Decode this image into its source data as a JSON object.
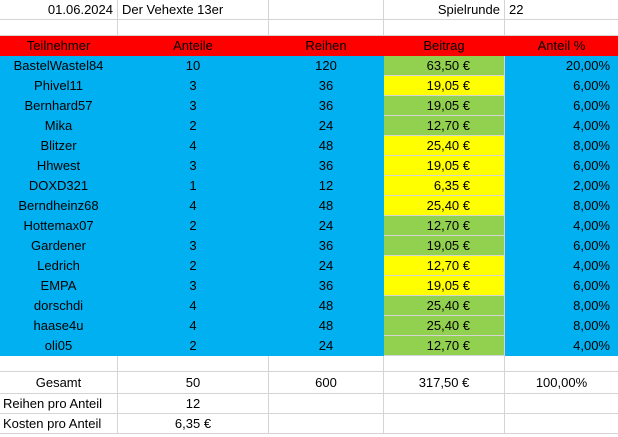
{
  "top": {
    "date": "01.06.2024",
    "title": "Der Vehexte 13er",
    "spielrunde_label": "Spielrunde",
    "spielrunde_value": "22"
  },
  "headers": [
    "Teilnehmer",
    "Anteile",
    "Reihen",
    "Beitrag",
    "Anteil %"
  ],
  "rows": [
    {
      "name": "BastelWastel84",
      "anteile": "10",
      "reihen": "120",
      "beitrag": "63,50 €",
      "anteil": "20,00%",
      "color": "#92d050"
    },
    {
      "name": "Phivel11",
      "anteile": "3",
      "reihen": "36",
      "beitrag": "19,05 €",
      "anteil": "6,00%",
      "color": "#ffff00"
    },
    {
      "name": "Bernhard57",
      "anteile": "3",
      "reihen": "36",
      "beitrag": "19,05 €",
      "anteil": "6,00%",
      "color": "#92d050"
    },
    {
      "name": "Mika",
      "anteile": "2",
      "reihen": "24",
      "beitrag": "12,70 €",
      "anteil": "4,00%",
      "color": "#92d050"
    },
    {
      "name": "Blitzer",
      "anteile": "4",
      "reihen": "48",
      "beitrag": "25,40 €",
      "anteil": "8,00%",
      "color": "#ffff00"
    },
    {
      "name": "Hhwest",
      "anteile": "3",
      "reihen": "36",
      "beitrag": "19,05 €",
      "anteil": "6,00%",
      "color": "#ffff00"
    },
    {
      "name": "DOXD321",
      "anteile": "1",
      "reihen": "12",
      "beitrag": "6,35 €",
      "anteil": "2,00%",
      "color": "#ffff00"
    },
    {
      "name": "Berndheinz68",
      "anteile": "4",
      "reihen": "48",
      "beitrag": "25,40 €",
      "anteil": "8,00%",
      "color": "#ffff00"
    },
    {
      "name": "Hottemax07",
      "anteile": "2",
      "reihen": "24",
      "beitrag": "12,70 €",
      "anteil": "4,00%",
      "color": "#92d050"
    },
    {
      "name": "Gardener",
      "anteile": "3",
      "reihen": "36",
      "beitrag": "19,05 €",
      "anteil": "6,00%",
      "color": "#92d050"
    },
    {
      "name": "Ledrich",
      "anteile": "2",
      "reihen": "24",
      "beitrag": "12,70 €",
      "anteil": "4,00%",
      "color": "#ffff00"
    },
    {
      "name": "EMPA",
      "anteile": "3",
      "reihen": "36",
      "beitrag": "19,05 €",
      "anteil": "6,00%",
      "color": "#ffff00"
    },
    {
      "name": "dorschdi",
      "anteile": "4",
      "reihen": "48",
      "beitrag": "25,40 €",
      "anteil": "8,00%",
      "color": "#92d050"
    },
    {
      "name": "haase4u",
      "anteile": "4",
      "reihen": "48",
      "beitrag": "25,40 €",
      "anteil": "8,00%",
      "color": "#92d050"
    },
    {
      "name": "oli05",
      "anteile": "2",
      "reihen": "24",
      "beitrag": "12,70 €",
      "anteil": "4,00%",
      "color": "#92d050"
    }
  ],
  "totals": {
    "label": "Gesamt",
    "anteile": "50",
    "reihen": "600",
    "beitrag": "317,50 €",
    "anteil": "100,00%"
  },
  "reihen_pro_anteil": {
    "label": "Reihen pro Anteil",
    "value": "12"
  },
  "kosten_pro_anteil": {
    "label": "Kosten pro Anteil",
    "value": "6,35 €"
  },
  "colors": {
    "header": "#ff0000",
    "participant": "#00b0f0",
    "paid": "#92d050",
    "pending": "#ffff00"
  }
}
